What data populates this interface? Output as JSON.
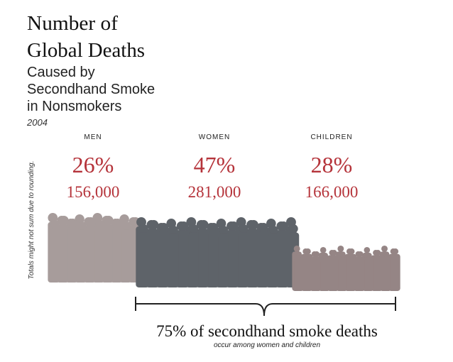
{
  "header": {
    "title_lines": [
      "Number of",
      "Global Deaths"
    ],
    "subtitle_lines": [
      "Caused by",
      "Secondhand Smoke",
      "in Nonsmokers"
    ],
    "year": "2004"
  },
  "note": "Totals might not sum due to rounding.",
  "groups": [
    {
      "label": "MEN",
      "percent": "26%",
      "count": "156,000"
    },
    {
      "label": "WOMEN",
      "percent": "47%",
      "count": "281,000"
    },
    {
      "label": "CHILDREN",
      "percent": "28%",
      "count": "166,000"
    }
  ],
  "footer": {
    "headline": "75% of secondhand smoke deaths",
    "subline": "occur among women and children"
  }
}
